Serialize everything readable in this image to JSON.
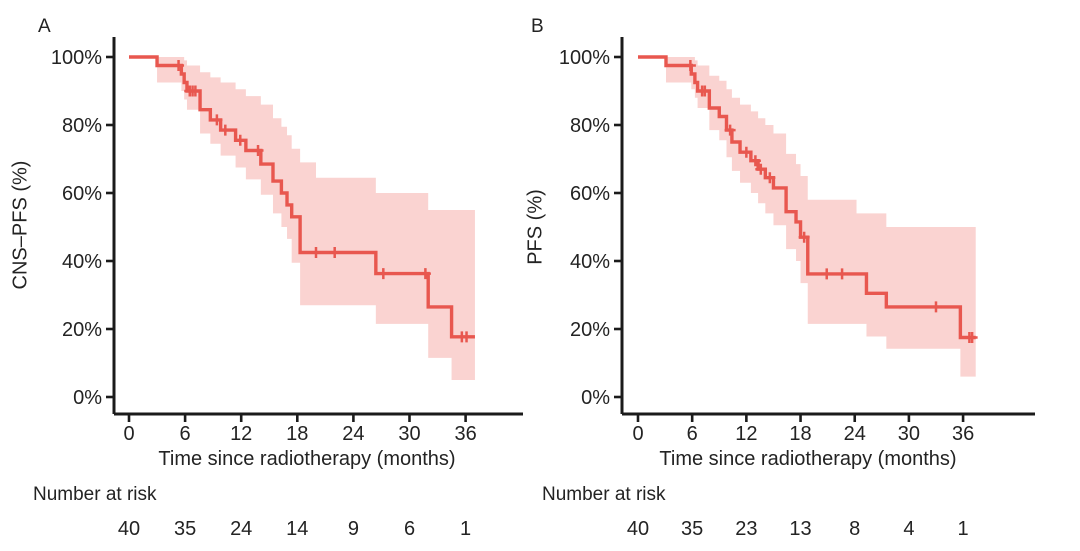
{
  "figure": {
    "type": "kaplan-meier-survival-figure",
    "background": "#ffffff",
    "text_color": "#232323",
    "axis_color": "#1b1b1b"
  },
  "chart_data": [
    {
      "type": "line",
      "subtype": "kaplan-meier-step-curve-with-confidence-band",
      "panel_label": "A",
      "ylabel": "CNS–PFS (%)",
      "xlabel": "Time since radiotherapy (months)",
      "curve_color": "#e8574f",
      "ci_color": "#fad3d1",
      "x_ticks": [
        0,
        6,
        12,
        18,
        24,
        30,
        36
      ],
      "y_ticks_pct": [
        100,
        80,
        60,
        40,
        20,
        0
      ],
      "y_tick_labels": [
        "100%",
        "80%",
        "60%",
        "40%",
        "20%",
        "0%"
      ],
      "xlim_months": [
        0,
        38
      ],
      "ylim_pct": [
        0,
        100
      ],
      "curve_end_time": 37.0,
      "steps_time_survival_pct": [
        [
          0,
          100
        ],
        [
          3.0,
          97.5
        ],
        [
          5.6,
          95
        ],
        [
          5.9,
          92.5
        ],
        [
          6.2,
          90
        ],
        [
          7.6,
          84.5
        ],
        [
          8.7,
          81.5
        ],
        [
          9.8,
          78.5
        ],
        [
          11.4,
          75.5
        ],
        [
          12.5,
          72.5
        ],
        [
          14.1,
          68.5
        ],
        [
          15.4,
          63.5
        ],
        [
          16.3,
          60
        ],
        [
          16.9,
          56.5
        ],
        [
          17.4,
          53
        ],
        [
          18.3,
          42.5
        ],
        [
          26.4,
          36.3
        ],
        [
          32.0,
          26.5
        ],
        [
          34.5,
          17.7
        ]
      ],
      "censor_marks_time_survival_pct": [
        [
          5.3,
          97.5
        ],
        [
          6.5,
          90
        ],
        [
          6.8,
          90
        ],
        [
          7.1,
          90
        ],
        [
          9.4,
          81.5
        ],
        [
          10.3,
          78.5
        ],
        [
          11.9,
          75.5
        ],
        [
          13.8,
          72.5
        ],
        [
          20.0,
          42.5
        ],
        [
          22.0,
          42.5
        ],
        [
          27.2,
          36.3
        ],
        [
          31.7,
          36.3
        ],
        [
          35.6,
          17.7
        ],
        [
          36.1,
          17.7
        ]
      ],
      "ci_upper_time_pct": [
        [
          3.0,
          100
        ],
        [
          5.6,
          100
        ],
        [
          5.9,
          99
        ],
        [
          6.2,
          97.5
        ],
        [
          7.6,
          95.5
        ],
        [
          8.7,
          94
        ],
        [
          9.8,
          92.5
        ],
        [
          11.4,
          90.5
        ],
        [
          12.5,
          88.5
        ],
        [
          14.1,
          86
        ],
        [
          15.4,
          82
        ],
        [
          16.3,
          79.5
        ],
        [
          16.9,
          77
        ],
        [
          17.4,
          73
        ],
        [
          18.3,
          69
        ],
        [
          20.0,
          64.5
        ],
        [
          26.4,
          60
        ],
        [
          32.0,
          55
        ]
      ],
      "ci_lower_time_pct": [
        [
          3.0,
          92.5
        ],
        [
          5.6,
          90
        ],
        [
          5.9,
          87.5
        ],
        [
          6.2,
          84.5
        ],
        [
          7.6,
          77.5
        ],
        [
          8.7,
          74.5
        ],
        [
          9.8,
          71
        ],
        [
          11.4,
          67.5
        ],
        [
          12.5,
          64
        ],
        [
          14.1,
          59.5
        ],
        [
          15.4,
          54
        ],
        [
          16.3,
          50
        ],
        [
          16.9,
          46.5
        ],
        [
          17.4,
          39.5
        ],
        [
          18.3,
          27
        ],
        [
          26.4,
          21.5
        ],
        [
          32.0,
          11.5
        ],
        [
          34.5,
          5
        ]
      ],
      "risk_label": "Number at risk",
      "risk_table": {
        "times_months": [
          0,
          6,
          12,
          18,
          24,
          30,
          36
        ],
        "counts": [
          40,
          35,
          24,
          14,
          9,
          6,
          1
        ]
      }
    },
    {
      "type": "line",
      "subtype": "kaplan-meier-step-curve-with-confidence-band",
      "panel_label": "B",
      "ylabel": "PFS (%)",
      "xlabel": "Time since radiotherapy (months)",
      "curve_color": "#e8574f",
      "ci_color": "#fad3d1",
      "x_ticks": [
        0,
        6,
        12,
        18,
        24,
        30,
        36
      ],
      "y_ticks_pct": [
        100,
        80,
        60,
        40,
        20,
        0
      ],
      "y_tick_labels": [
        "100%",
        "80%",
        "60%",
        "40%",
        "20%",
        "0%"
      ],
      "xlim_months": [
        0,
        38
      ],
      "ylim_pct": [
        0,
        100
      ],
      "curve_end_time": 37.4,
      "steps_time_survival_pct": [
        [
          0,
          100
        ],
        [
          3.1,
          97.5
        ],
        [
          5.9,
          95
        ],
        [
          6.3,
          92.5
        ],
        [
          6.6,
          90
        ],
        [
          7.9,
          85
        ],
        [
          9.0,
          82.5
        ],
        [
          9.8,
          78.5
        ],
        [
          10.4,
          75
        ],
        [
          11.3,
          72
        ],
        [
          12.5,
          69.5
        ],
        [
          13.3,
          67
        ],
        [
          14.1,
          64.5
        ],
        [
          15.0,
          61.5
        ],
        [
          16.4,
          54.5
        ],
        [
          17.5,
          51.5
        ],
        [
          18.0,
          47
        ],
        [
          18.8,
          36.2
        ],
        [
          25.3,
          30.5
        ],
        [
          27.5,
          26.5
        ],
        [
          35.7,
          17.5
        ]
      ],
      "censor_marks_time_survival_pct": [
        [
          5.8,
          97.5
        ],
        [
          7.1,
          90
        ],
        [
          7.4,
          90
        ],
        [
          10.2,
          78.5
        ],
        [
          12.0,
          72
        ],
        [
          13.0,
          69.5
        ],
        [
          13.6,
          67
        ],
        [
          14.6,
          64.5
        ],
        [
          18.4,
          47
        ],
        [
          20.9,
          36.2
        ],
        [
          22.6,
          36.2
        ],
        [
          33.0,
          26.5
        ],
        [
          36.7,
          17.5
        ],
        [
          37.0,
          17.5
        ]
      ],
      "ci_upper_time_pct": [
        [
          3.1,
          100
        ],
        [
          5.9,
          100
        ],
        [
          6.3,
          99
        ],
        [
          6.6,
          97.5
        ],
        [
          7.9,
          94.5
        ],
        [
          9.0,
          93
        ],
        [
          9.8,
          90.5
        ],
        [
          10.4,
          88
        ],
        [
          11.3,
          86
        ],
        [
          12.5,
          84
        ],
        [
          13.3,
          82
        ],
        [
          14.1,
          80
        ],
        [
          15.0,
          77.5
        ],
        [
          16.4,
          71.5
        ],
        [
          17.5,
          68.5
        ],
        [
          18.0,
          65
        ],
        [
          18.8,
          58
        ],
        [
          24.2,
          54
        ],
        [
          27.5,
          50
        ]
      ],
      "ci_lower_time_pct": [
        [
          3.1,
          92.5
        ],
        [
          5.9,
          90.5
        ],
        [
          6.3,
          88
        ],
        [
          6.6,
          85
        ],
        [
          7.9,
          78.5
        ],
        [
          9.0,
          75.5
        ],
        [
          9.8,
          70.5
        ],
        [
          10.4,
          66.5
        ],
        [
          11.3,
          63
        ],
        [
          12.5,
          60
        ],
        [
          13.3,
          57
        ],
        [
          14.1,
          54
        ],
        [
          15.0,
          50.5
        ],
        [
          16.4,
          43.5
        ],
        [
          17.5,
          40
        ],
        [
          18.0,
          33.5
        ],
        [
          18.8,
          21.5
        ],
        [
          25.3,
          17.8
        ],
        [
          27.5,
          14.2
        ],
        [
          35.7,
          6
        ]
      ],
      "risk_label": "Number at risk",
      "risk_table": {
        "times_months": [
          0,
          6,
          12,
          18,
          24,
          30,
          36
        ],
        "counts": [
          40,
          35,
          23,
          13,
          8,
          4,
          1
        ]
      }
    }
  ]
}
